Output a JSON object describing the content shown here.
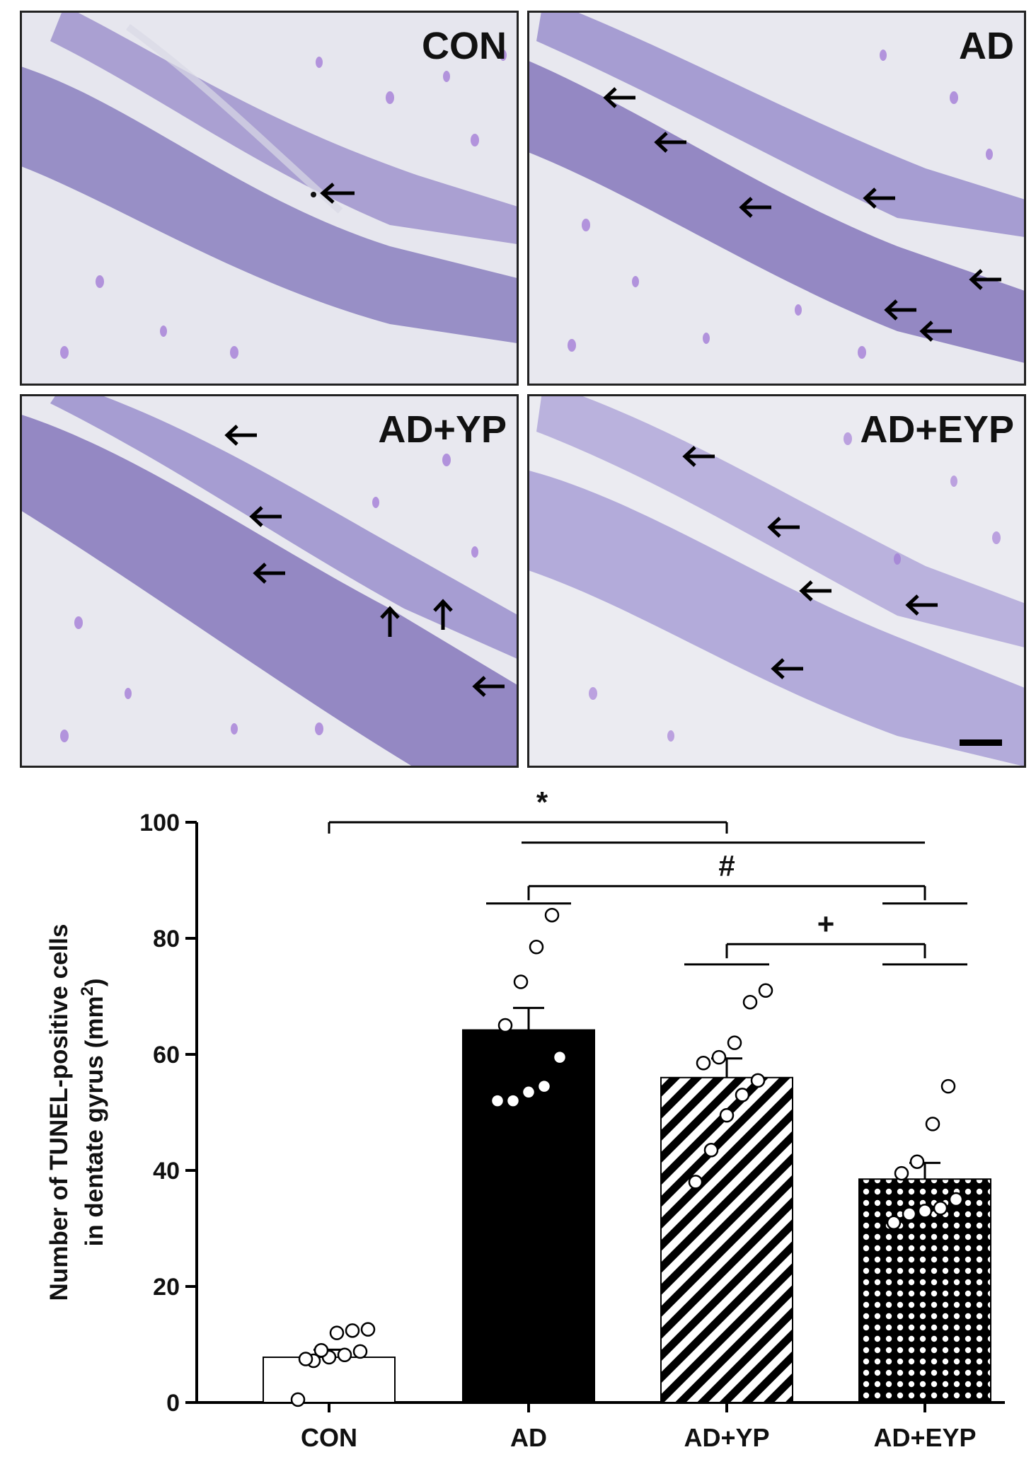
{
  "panels": [
    {
      "label": "CON",
      "arrows": 1
    },
    {
      "label": "AD",
      "arrows": 7
    },
    {
      "label": "AD+YP",
      "arrows": 6
    },
    {
      "label": "AD+EYP",
      "arrows": 5
    }
  ],
  "chart_data": {
    "type": "bar",
    "categories": [
      "CON",
      "AD",
      "AD+YP",
      "AD+EYP"
    ],
    "values": [
      7.8,
      64.2,
      56.0,
      38.5
    ],
    "sem": [
      1.3,
      3.8,
      3.3,
      2.8
    ],
    "ylabel_line1": "Number of TUNEL-positive cells",
    "ylabel_line2": "in dentate gyrus (mm",
    "ylabel_sup": "2",
    "ylabel_close": ")",
    "ylim": [
      0,
      100
    ],
    "yticks": [
      0,
      20,
      40,
      60,
      80,
      100
    ],
    "points": [
      [
        0.5,
        7.2,
        7.8,
        8.2,
        8.8,
        7.5,
        9.0,
        12.0,
        12.4,
        12.6
      ],
      [
        52.0,
        52.0,
        53.5,
        54.5,
        59.5,
        65.0,
        72.5,
        78.5,
        84.0
      ],
      [
        38.0,
        43.5,
        49.5,
        53.0,
        55.5,
        58.5,
        59.5,
        62.0,
        69.0,
        71.0
      ],
      [
        31.0,
        32.5,
        33.0,
        33.5,
        35.0,
        39.5,
        41.5,
        48.0,
        54.5
      ]
    ],
    "bar_styles": [
      "open",
      "solid",
      "diagonal",
      "checker"
    ],
    "significance": [
      {
        "symbol": "*"
      },
      {
        "symbol": "#"
      },
      {
        "symbol": "+"
      }
    ]
  }
}
